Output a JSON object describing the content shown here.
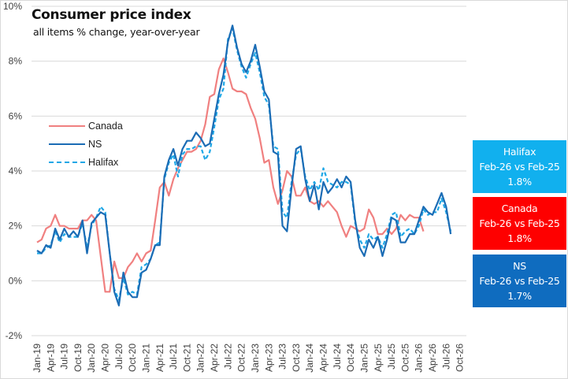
{
  "chart_data": {
    "type": "line",
    "title": "Consumer price index",
    "subtitle": "all items % change, year-over-year",
    "xlabel": "",
    "ylabel": "",
    "ylim": [
      -2,
      10
    ],
    "yticks": [
      "-2%",
      "0%",
      "2%",
      "4%",
      "6%",
      "8%",
      "10%"
    ],
    "ytick_values": [
      -2,
      0,
      2,
      4,
      6,
      8,
      10
    ],
    "grid": true,
    "legend_position": "middle-left",
    "x_start": "Jan-19",
    "x_tick_labels": [
      "Jan-19",
      "Apr-19",
      "Jul-19",
      "Oct-19",
      "Jan-20",
      "Apr-20",
      "Jul-20",
      "Oct-20",
      "Jan-21",
      "Apr-21",
      "Jul-21",
      "Oct-21",
      "Jan-22",
      "Apr-22",
      "Jul-22",
      "Oct-22",
      "Jan-23",
      "Apr-23",
      "Jul-23",
      "Oct-23",
      "Jan-24",
      "Apr-24",
      "Jul-24",
      "Oct-24",
      "Jan-25",
      "Apr-25",
      "Jul-25",
      "Oct-25",
      "Jan-26",
      "Apr-26",
      "Jul-26",
      "Oct-26"
    ],
    "series": [
      {
        "name": "Canada",
        "color": "#f08080",
        "style": "solid",
        "values": [
          1.4,
          1.5,
          1.9,
          2.0,
          2.4,
          2.0,
          2.0,
          1.9,
          1.9,
          1.9,
          2.2,
          2.2,
          2.4,
          2.2,
          0.9,
          -0.4,
          -0.4,
          0.7,
          0.1,
          0.1,
          0.5,
          0.7,
          1.0,
          0.7,
          1.0,
          1.1,
          2.2,
          3.4,
          3.6,
          3.1,
          3.7,
          4.1,
          4.4,
          4.7,
          4.7,
          4.8,
          5.1,
          5.7,
          6.7,
          6.8,
          7.7,
          8.1,
          7.6,
          7.0,
          6.9,
          6.9,
          6.8,
          6.3,
          5.9,
          5.2,
          4.3,
          4.4,
          3.4,
          2.8,
          3.3,
          4.0,
          3.8,
          3.1,
          3.1,
          3.4,
          2.9,
          2.8,
          2.9,
          2.7,
          2.9,
          2.7,
          2.5,
          2.0,
          1.6,
          2.0,
          1.9,
          1.8,
          1.9,
          2.6,
          2.3,
          1.7,
          1.7,
          1.9,
          1.7,
          1.9,
          2.4,
          2.2,
          2.4,
          2.3,
          2.3,
          1.8
        ]
      },
      {
        "name": "NS",
        "color": "#1b6cb5",
        "style": "solid",
        "values": [
          1.1,
          1.0,
          1.3,
          1.2,
          1.9,
          1.5,
          1.9,
          1.6,
          1.8,
          1.6,
          2.2,
          1.0,
          2.1,
          2.3,
          2.5,
          2.4,
          1.0,
          -0.4,
          -0.9,
          0.3,
          -0.4,
          -0.6,
          -0.6,
          0.3,
          0.4,
          0.8,
          1.3,
          1.3,
          3.8,
          4.4,
          4.8,
          4.2,
          4.8,
          5.1,
          5.1,
          5.4,
          5.2,
          4.9,
          5.0,
          5.9,
          6.8,
          7.5,
          8.7,
          9.3,
          8.5,
          7.9,
          7.6,
          8.0,
          8.6,
          7.8,
          6.9,
          6.6,
          4.7,
          4.6,
          2.0,
          1.8,
          3.4,
          4.8,
          4.9,
          3.7,
          2.9,
          3.5,
          2.6,
          3.6,
          3.2,
          3.4,
          3.7,
          3.4,
          3.8,
          3.6,
          2.2,
          1.2,
          0.9,
          1.5,
          1.2,
          1.6,
          0.9,
          1.5,
          2.3,
          2.2,
          1.4,
          1.4,
          1.7,
          1.7,
          2.2,
          2.7,
          2.5,
          2.4,
          2.8,
          3.2,
          2.7,
          1.7
        ]
      },
      {
        "name": "Halifax",
        "color": "#1fa7e6",
        "style": "dashed",
        "values": [
          1.0,
          1.0,
          1.2,
          1.3,
          1.8,
          1.4,
          1.7,
          1.6,
          1.6,
          1.6,
          2.1,
          1.2,
          2.0,
          2.3,
          2.7,
          2.5,
          1.0,
          -0.3,
          -0.7,
          0.1,
          -0.5,
          -0.4,
          -0.5,
          0.5,
          0.6,
          0.8,
          1.3,
          1.4,
          3.7,
          4.3,
          4.6,
          3.8,
          4.6,
          4.8,
          4.8,
          4.9,
          4.9,
          4.4,
          4.7,
          5.6,
          6.6,
          7.0,
          8.8,
          9.2,
          8.4,
          7.8,
          7.4,
          7.9,
          8.3,
          7.6,
          6.7,
          6.4,
          4.9,
          4.8,
          2.5,
          2.3,
          3.6,
          4.6,
          4.8,
          3.8,
          3.3,
          3.6,
          3.3,
          4.1,
          3.6,
          3.5,
          3.4,
          3.6,
          3.6,
          3.5,
          2.1,
          1.5,
          1.2,
          1.7,
          1.5,
          1.6,
          1.2,
          1.7,
          2.4,
          2.5,
          1.6,
          1.8,
          1.9,
          1.7,
          2.0,
          2.6,
          2.4,
          2.5,
          2.5,
          3.0,
          2.5,
          1.8
        ]
      }
    ]
  },
  "callouts": [
    {
      "name": "Halifax",
      "period": "Feb-26 vs Feb-25",
      "value": "1.8%",
      "color": "#11b0ee"
    },
    {
      "name": "Canada",
      "period": "Feb-26 vs Feb-25",
      "value": "1.8%",
      "color": "#fe0000"
    },
    {
      "name": "NS",
      "period": "Feb-26 vs Feb-25",
      "value": "1.7%",
      "color": "#0f6cbf"
    }
  ]
}
